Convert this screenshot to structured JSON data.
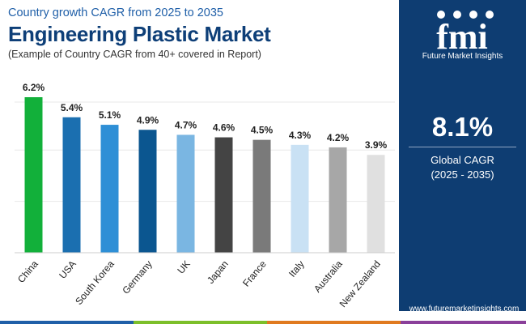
{
  "header": {
    "subtitle": "Country growth CAGR from 2025 to 2035",
    "title": "Engineering Plastic Market",
    "note": "(Example of Country CAGR from 40+ covered in Report)"
  },
  "chart_data": {
    "type": "bar",
    "categories": [
      "China",
      "USA",
      "South Korea",
      "Germany",
      "UK",
      "Japan",
      "France",
      "Italy",
      "Australia",
      "New Zealand"
    ],
    "values": [
      6.2,
      5.4,
      5.1,
      4.9,
      4.7,
      4.6,
      4.5,
      4.3,
      4.2,
      3.9
    ],
    "data_labels": [
      "6.2%",
      "5.4%",
      "5.1%",
      "4.9%",
      "4.7%",
      "4.6%",
      "4.5%",
      "4.3%",
      "4.2%",
      "3.9%"
    ],
    "colors": [
      "#12b03a",
      "#1b6fb0",
      "#2e8fd6",
      "#0b5690",
      "#7ab6e2",
      "#444444",
      "#7a7a7a",
      "#c9e1f4",
      "#a7a7a7",
      "#e0e0e0"
    ],
    "ylim": [
      0,
      6.2
    ],
    "grid": true,
    "xlabel": "",
    "ylabel": ""
  },
  "panel": {
    "logo_letters": "fmi",
    "logo_text": "Future Market Insights",
    "global_value": "8.1%",
    "global_label": "Global CAGR",
    "global_period": "(2025 - 2035)",
    "website": "www.futuremarketinsights.com"
  },
  "colors": {
    "panel_bg": "#0e3d72",
    "title": "#0e3f78",
    "subtitle": "#1f5fa8",
    "bottom_bar": [
      "#1f5fa8",
      "#7cbf2a",
      "#e07a1f",
      "#8a3f9a",
      "#0e3d72"
    ]
  }
}
